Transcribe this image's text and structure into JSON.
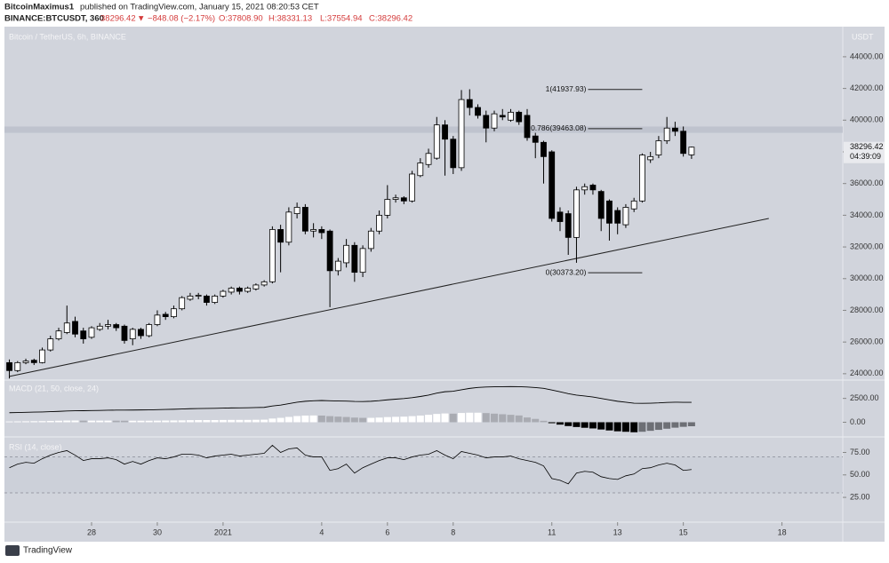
{
  "header": {
    "author": "BitcoinMaximus1",
    "published": "published on TradingView.com, January 15, 2021 08:20:53 CET",
    "symbol": "BINANCE:BTCUSDT, 360",
    "change": "▼ −848.08 (−2.17%)",
    "open": "O:37808.90",
    "high": "H:38331.13",
    "low": "L:37554.94",
    "close": "C:38296.42"
  },
  "footer": {
    "brand": "TradingView"
  },
  "chart_data": {
    "type": "candlestick",
    "title": "Bitcoin / TetherUS, 6h, BINANCE",
    "y_axis_label": "USDT",
    "open": [
      24700,
      24200,
      24700,
      24850,
      24700,
      25500,
      26200,
      26600,
      27300,
      26700,
      26300,
      26800,
      27000,
      27100,
      27000,
      26200,
      26800,
      26400,
      27100,
      27750,
      27600,
      28100,
      28700,
      28900,
      28900,
      28500,
      28900,
      29150,
      29400,
      29200,
      29350,
      29600,
      29800,
      33100,
      32300,
      34100,
      34500,
      33000,
      33100,
      33000,
      30500,
      31000,
      32100,
      30400,
      31900,
      33000,
      34000,
      35000,
      35100,
      34900,
      36500,
      37200,
      37600,
      39700,
      38800,
      37000,
      41300,
      40800,
      40300,
      39500,
      40300,
      40000,
      40500,
      40300,
      39000,
      38600,
      38000,
      34200,
      34100,
      32600,
      35600,
      35900,
      35500,
      34900,
      34300,
      33400,
      34400,
      34900,
      37500,
      37800,
      38700,
      39500,
      39300,
      37808.9
    ],
    "high": [
      24900,
      24800,
      24950,
      24950,
      25650,
      26400,
      26900,
      28300,
      27600,
      26900,
      27000,
      27200,
      27400,
      27200,
      27100,
      26900,
      26900,
      27200,
      28000,
      27900,
      28300,
      28900,
      29100,
      29100,
      29000,
      29000,
      29300,
      29500,
      29500,
      29500,
      29700,
      29900,
      33300,
      33400,
      34500,
      34800,
      34700,
      33500,
      33300,
      33100,
      31300,
      32500,
      32300,
      32100,
      33200,
      34300,
      35900,
      35300,
      35200,
      36800,
      37600,
      38200,
      40200,
      40000,
      39000,
      41900,
      41950,
      41000,
      40600,
      40600,
      40700,
      40700,
      40600,
      40700,
      39200,
      38700,
      38100,
      34500,
      34300,
      35800,
      36000,
      36000,
      35600,
      35000,
      34500,
      34700,
      35100,
      37900,
      38000,
      39000,
      40200,
      39900,
      39600,
      38331.13
    ],
    "low": [
      23700,
      24100,
      24600,
      24550,
      24650,
      25400,
      26100,
      26500,
      26300,
      25900,
      26200,
      26700,
      26800,
      26700,
      25900,
      25800,
      26200,
      26300,
      27000,
      27400,
      27500,
      28000,
      28600,
      28700,
      28300,
      28400,
      28800,
      29000,
      29000,
      29100,
      29250,
      29500,
      29700,
      30400,
      32100,
      33800,
      32800,
      32600,
      32500,
      28200,
      30200,
      30700,
      29800,
      30100,
      31700,
      32800,
      33800,
      34800,
      34700,
      34800,
      36400,
      37000,
      37500,
      36500,
      36600,
      36800,
      40300,
      40100,
      38600,
      39300,
      40000,
      39900,
      39700,
      38700,
      37600,
      36000,
      33600,
      33000,
      31500,
      31000,
      35300,
      35300,
      33000,
      32400,
      32800,
      33200,
      34200,
      34800,
      37300,
      37600,
      38500,
      39000,
      37700,
      37554.94
    ],
    "close": [
      24200,
      24700,
      24800,
      24700,
      25500,
      26200,
      26700,
      27200,
      26500,
      26200,
      26900,
      27000,
      27100,
      26900,
      26100,
      26800,
      26400,
      27100,
      27700,
      27600,
      28100,
      28800,
      28900,
      28950,
      28500,
      28900,
      29200,
      29400,
      29200,
      29400,
      29600,
      29800,
      33100,
      32300,
      34200,
      34500,
      33000,
      33100,
      32900,
      30500,
      31100,
      32100,
      30400,
      31900,
      33000,
      34000,
      35000,
      35100,
      34900,
      36600,
      37300,
      37900,
      39700,
      38800,
      37000,
      41300,
      40800,
      40300,
      39500,
      40400,
      40200,
      40500,
      39900,
      38900,
      38600,
      37700,
      33800,
      33600,
      32600,
      35600,
      35800,
      35600,
      33800,
      33500,
      33500,
      34500,
      34900,
      37800,
      37700,
      38700,
      39500,
      39300,
      37900,
      38296.42
    ],
    "up_color": "#ffffff",
    "down_color": "#000000",
    "xlim": [
      -0.6,
      101.4
    ],
    "xticks": [
      {
        "value": 10,
        "label": "28"
      },
      {
        "value": 18,
        "label": "30"
      },
      {
        "value": 26,
        "label": "2021"
      },
      {
        "value": 38,
        "label": "4"
      },
      {
        "value": 46,
        "label": "6"
      },
      {
        "value": 54,
        "label": "8"
      },
      {
        "value": 66,
        "label": "11"
      },
      {
        "value": 74,
        "label": "13"
      },
      {
        "value": 82,
        "label": "15"
      },
      {
        "value": 94,
        "label": "18"
      }
    ],
    "ylim": [
      23600,
      45900
    ],
    "yticks": [
      {
        "value": 24000,
        "label": "24000.00"
      },
      {
        "value": 26000,
        "label": "26000.00"
      },
      {
        "value": 28000,
        "label": "28000.00"
      },
      {
        "value": 30000,
        "label": "30000.00"
      },
      {
        "value": 32000,
        "label": "32000.00"
      },
      {
        "value": 34000,
        "label": "34000.00"
      },
      {
        "value": 36000,
        "label": "36000.00"
      },
      {
        "value": 38000,
        "label": "38000.00"
      },
      {
        "value": 40000,
        "label": "40000.00"
      },
      {
        "value": 42000,
        "label": "42000.00"
      },
      {
        "value": 44000,
        "label": "44000.00"
      }
    ],
    "trendline": {
      "x": [
        0,
        92.4
      ],
      "y": [
        23830,
        33800
      ]
    },
    "fib": [
      {
        "label": "1(41937.93)",
        "value": 41937.93
      },
      {
        "label": "0.786(39463.08)",
        "value": 39463.08
      },
      {
        "label": "0(30373.20)",
        "value": 30373.2
      }
    ],
    "fib_x": [
      65,
      77
    ],
    "zone": [
      39200,
      39600
    ],
    "countdown": "04:39:09",
    "macd": {
      "title": "MACD (21, 50, close, 24)",
      "color": "#000000",
      "line": [
        1000,
        1020,
        1040,
        1060,
        1080,
        1110,
        1140,
        1180,
        1200,
        1210,
        1230,
        1240,
        1260,
        1270,
        1270,
        1280,
        1290,
        1300,
        1320,
        1340,
        1360,
        1390,
        1420,
        1440,
        1450,
        1460,
        1480,
        1500,
        1510,
        1520,
        1540,
        1560,
        1700,
        1800,
        1950,
        2100,
        2200,
        2250,
        2280,
        2250,
        2230,
        2220,
        2180,
        2170,
        2200,
        2260,
        2350,
        2420,
        2480,
        2580,
        2700,
        2850,
        3050,
        3200,
        3250,
        3400,
        3550,
        3650,
        3700,
        3720,
        3730,
        3740,
        3730,
        3700,
        3640,
        3560,
        3380,
        3200,
        3000,
        2850,
        2750,
        2650,
        2500,
        2350,
        2200,
        2100,
        2000,
        1980,
        2000,
        2030,
        2080,
        2100,
        2090,
        2090
      ],
      "histogram": [
        80,
        90,
        100,
        110,
        120,
        140,
        160,
        180,
        180,
        170,
        170,
        170,
        170,
        165,
        160,
        160,
        160,
        160,
        170,
        180,
        190,
        200,
        220,
        230,
        230,
        230,
        240,
        250,
        250,
        250,
        260,
        270,
        390,
        460,
        560,
        650,
        700,
        710,
        700,
        640,
        590,
        550,
        490,
        460,
        460,
        490,
        540,
        570,
        590,
        640,
        700,
        780,
        870,
        920,
        900,
        970,
        1000,
        1000,
        960,
        900,
        840,
        780,
        710,
        500,
        350,
        150,
        -100,
        -250,
        -400,
        -500,
        -580,
        -650,
        -760,
        -860,
        -950,
        -1000,
        -1050,
        -1000,
        -900,
        -800,
        -680,
        -570,
        -480,
        -420
      ],
      "ylim": [
        -1538,
        4423
      ],
      "yticks": [
        {
          "value": 2500,
          "label": "2500.00"
        },
        {
          "value": 0,
          "label": "0.00"
        }
      ]
    },
    "rsi": {
      "title": "RSI (14, close)",
      "color": "#000000",
      "values": [
        58,
        62,
        64,
        63,
        68,
        72,
        75,
        77,
        72,
        66,
        68,
        68,
        69,
        67,
        62,
        65,
        62,
        66,
        69,
        68,
        70,
        73,
        73,
        72,
        69,
        71,
        72,
        73,
        71,
        72,
        73,
        74,
        83,
        75,
        79,
        80,
        72,
        70,
        70,
        55,
        57,
        62,
        52,
        58,
        62,
        66,
        69,
        69,
        67,
        70,
        72,
        73,
        77,
        72,
        68,
        76,
        74,
        72,
        69,
        70,
        70,
        71,
        68,
        66,
        64,
        60,
        46,
        44,
        40,
        52,
        54,
        53,
        48,
        46,
        45,
        49,
        51,
        57,
        58,
        61,
        63,
        61,
        55,
        56
      ],
      "ylim": [
        -2.6,
        92.3
      ],
      "yticks": [
        {
          "value": 75,
          "label": "75.00"
        },
        {
          "value": 50,
          "label": "50.00"
        },
        {
          "value": 25,
          "label": "25.00"
        }
      ],
      "bands": [
        70,
        30
      ]
    }
  }
}
